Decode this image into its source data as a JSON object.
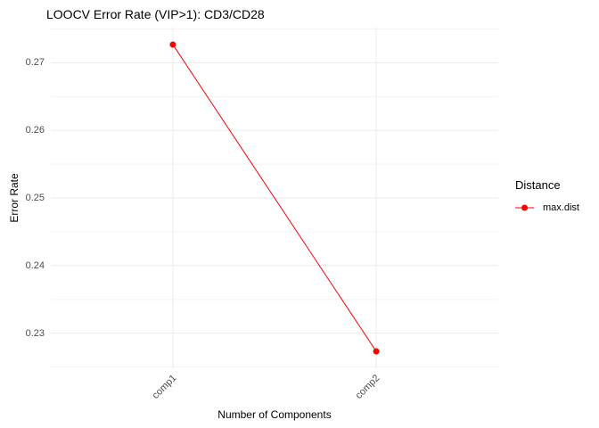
{
  "title": "LOOCV Error Rate (VIP>1): CD3/CD28",
  "axes": {
    "x_title": "Number of Components",
    "y_title": "Error Rate"
  },
  "legend": {
    "title": "Distance",
    "items": [
      {
        "label": "max.dist",
        "color": "#FF0000",
        "marker": "circle-with-line"
      }
    ]
  },
  "colors": {
    "accent": "#FF0000",
    "grid_major": "#EBEBEB",
    "grid_minor": "#F4F4F4",
    "tick_text": "#4D4D4D",
    "text": "#000000",
    "background": "#FFFFFF"
  },
  "chart_data": {
    "type": "line",
    "title": "LOOCV Error Rate (VIP>1): CD3/CD28",
    "xlabel": "Number of Components",
    "ylabel": "Error Rate",
    "categories": [
      "comp1",
      "comp2"
    ],
    "series": [
      {
        "name": "max.dist",
        "values": [
          0.2727,
          0.2273
        ],
        "color": "#FF0000"
      }
    ],
    "ylim": [
      0.2248,
      0.2752
    ],
    "yticks_major": [
      0.23,
      0.24,
      0.25,
      0.26,
      0.27
    ],
    "yticks_minor": [
      0.225,
      0.235,
      0.245,
      0.255,
      0.265,
      0.275
    ],
    "grid": true,
    "legend_position": "right",
    "x_tick_rotation": 45,
    "point_radius": 3.5
  }
}
